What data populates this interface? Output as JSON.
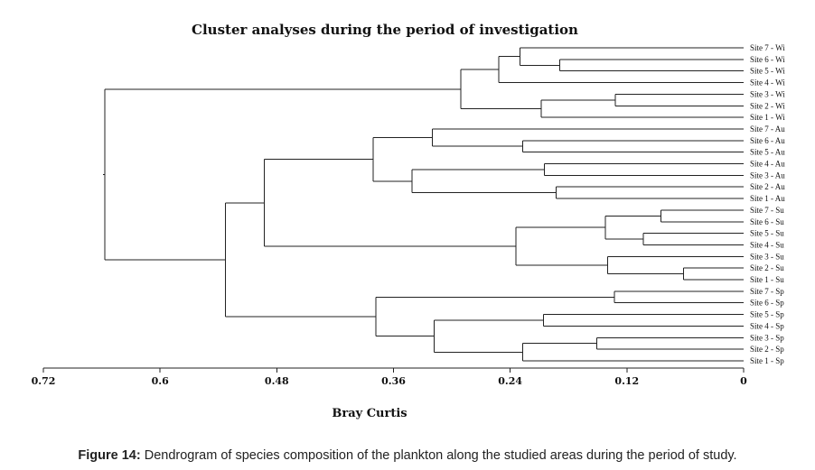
{
  "caption": {
    "label": "Figure 14:",
    "text": " Dendrogram of species composition of the plankton along the studied areas during the period of study."
  },
  "chart_data": {
    "type": "dendrogram",
    "title": "Cluster analyses during the period of investigation",
    "xlabel": "Bray Curtis",
    "xlim": [
      0.72,
      0
    ],
    "ticks": [
      "0.72",
      "0.6",
      "0.48",
      "0.36",
      "0.24",
      "0.12",
      "0"
    ],
    "tick_values": [
      0.72,
      0.6,
      0.48,
      0.36,
      0.24,
      0.12,
      0
    ],
    "leaves": [
      "Site 7 - Wi",
      "Site 6 - Wi",
      "Site 5 - Wi",
      "Site 4 - Wi",
      "Site 3 - Wi",
      "Site 2 - Wi",
      "Site 1 - Wi",
      "Site 7 - Au",
      "Site 6 - Au",
      "Site 5 - Au",
      "Site 4 - Au",
      "Site 3 - Au",
      "Site 2 - Au",
      "Site 1 - Au",
      "Site 7 - Su",
      "Site 6 - Su",
      "Site 5 - Su",
      "Site 4 - Su",
      "Site 3 - Su",
      "Site 2 - Su",
      "Site 1 - Su",
      "Site 7 - Sp",
      "Site 6 - Sp",
      "Site 5 - Sp",
      "Site 4 - Sp",
      "Site 3 - Sp",
      "Site 2 - Sp",
      "Site 1 - Sp"
    ],
    "merges": [
      {
        "id": "W56",
        "children": [
          "L2",
          "L3"
        ],
        "height": 0.189
      },
      {
        "id": "W456",
        "children": [
          "L1",
          "W56"
        ],
        "height": 0.23
      },
      {
        "id": "W4567",
        "children": [
          "W456",
          "L4"
        ],
        "height": 0.252
      },
      {
        "id": "W23",
        "children": [
          "L5",
          "L6"
        ],
        "height": 0.132
      },
      {
        "id": "W123",
        "children": [
          "W23",
          "L7"
        ],
        "height": 0.208
      },
      {
        "id": "WI",
        "children": [
          "W4567",
          "W123"
        ],
        "height": 0.291
      },
      {
        "id": "A56",
        "children": [
          "L9",
          "L10"
        ],
        "height": 0.227
      },
      {
        "id": "A567",
        "children": [
          "L8",
          "A56"
        ],
        "height": 0.32
      },
      {
        "id": "A34",
        "children": [
          "L11",
          "L12"
        ],
        "height": 0.205
      },
      {
        "id": "A12",
        "children": [
          "L13",
          "L14"
        ],
        "height": 0.193
      },
      {
        "id": "A1234",
        "children": [
          "A34",
          "A12"
        ],
        "height": 0.341
      },
      {
        "id": "AU",
        "children": [
          "A567",
          "A1234"
        ],
        "height": 0.381
      },
      {
        "id": "S67",
        "children": [
          "L15",
          "L16"
        ],
        "height": 0.085
      },
      {
        "id": "S45",
        "children": [
          "L17",
          "L18"
        ],
        "height": 0.103
      },
      {
        "id": "S4567",
        "children": [
          "S67",
          "S45"
        ],
        "height": 0.142
      },
      {
        "id": "S12",
        "children": [
          "L20",
          "L21"
        ],
        "height": 0.062
      },
      {
        "id": "S123",
        "children": [
          "L19",
          "S12"
        ],
        "height": 0.14
      },
      {
        "id": "SU",
        "children": [
          "S4567",
          "S123"
        ],
        "height": 0.234
      },
      {
        "id": "AS",
        "children": [
          "AU",
          "SU"
        ],
        "height": 0.493
      },
      {
        "id": "P67",
        "children": [
          "L22",
          "L23"
        ],
        "height": 0.133
      },
      {
        "id": "P45",
        "children": [
          "L24",
          "L25"
        ],
        "height": 0.206
      },
      {
        "id": "P23",
        "children": [
          "L26",
          "L27"
        ],
        "height": 0.151
      },
      {
        "id": "P123",
        "children": [
          "P23",
          "L28"
        ],
        "height": 0.227
      },
      {
        "id": "P12345",
        "children": [
          "P45",
          "P123"
        ],
        "height": 0.318
      },
      {
        "id": "SP",
        "children": [
          "P67",
          "P12345"
        ],
        "height": 0.378
      },
      {
        "id": "ASP",
        "children": [
          "AS",
          "SP"
        ],
        "height": 0.533
      },
      {
        "id": "ROOT",
        "children": [
          "WI",
          "ASP"
        ],
        "height": 0.657
      }
    ]
  }
}
